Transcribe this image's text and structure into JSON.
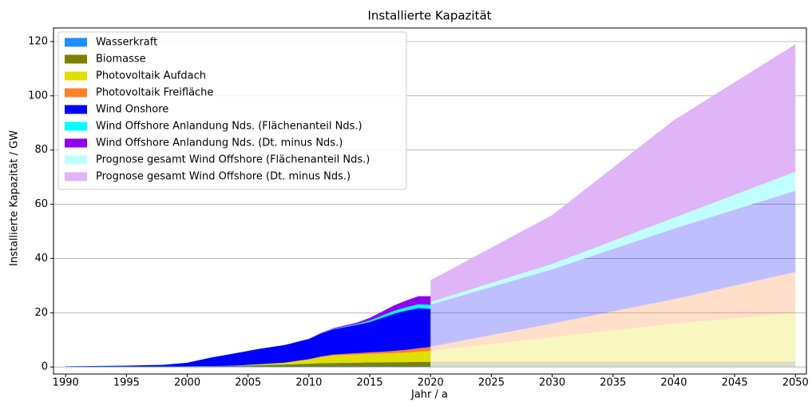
{
  "chart_data": {
    "type": "stacked_area",
    "title": "Installierte Kapazität",
    "x_label": "Jahr / a",
    "y_label": "Installierte Kapazität / GW",
    "x": [
      1990,
      1995,
      1998,
      2000,
      2002,
      2004,
      2006,
      2008,
      2010,
      2011,
      2012,
      2014,
      2015,
      2016,
      2017,
      2018,
      2019,
      2020
    ],
    "forecast_x": [
      2020,
      2030,
      2040,
      2050
    ],
    "forecast_opacity": 0.25,
    "series": [
      {
        "name": "Wasserkraft",
        "color": "#1f8fff",
        "values": [
          0.2,
          0.2,
          0.2,
          0.2,
          0.2,
          0.2,
          0.2,
          0.2,
          0.2,
          0.2,
          0.2,
          0.2,
          0.2,
          0.2,
          0.2,
          0.2,
          0.2,
          0.2
        ],
        "forecast": [
          0.3,
          0.3,
          0.3,
          0.3
        ]
      },
      {
        "name": "Biomasse",
        "color": "#808000",
        "values": [
          0,
          0,
          0,
          0.05,
          0.1,
          0.2,
          0.5,
          0.7,
          1,
          1.2,
          1.3,
          1.4,
          1.5,
          1.5,
          1.6,
          1.6,
          1.7,
          1.7
        ],
        "forecast": [
          1.7,
          1.7,
          1.7,
          1.7
        ]
      },
      {
        "name": "Photovoltaik Aufdach",
        "color": "#dfe000",
        "values": [
          0,
          0,
          0,
          0,
          0.02,
          0.1,
          0.3,
          0.6,
          1.5,
          2.2,
          2.7,
          3,
          3.1,
          3.2,
          3.3,
          3.5,
          3.8,
          4
        ],
        "forecast": [
          4,
          9,
          14,
          18
        ]
      },
      {
        "name": "Photovoltaik Freifläche",
        "color": "#ff7f27",
        "values": [
          0,
          0,
          0,
          0,
          0,
          0,
          0.05,
          0.1,
          0.2,
          0.3,
          0.4,
          0.5,
          0.6,
          0.7,
          0.8,
          1,
          1.2,
          1.5
        ],
        "forecast": [
          1.5,
          5,
          9,
          15
        ]
      },
      {
        "name": "Wind Onshore",
        "color": "#0000ff",
        "values": [
          0.05,
          0.3,
          0.6,
          1.3,
          3.2,
          4.6,
          5.7,
          6.5,
          7.4,
          8.5,
          9.3,
          10.5,
          11.2,
          12.5,
          13.8,
          14.5,
          14.8,
          14
        ],
        "forecast": [
          15.5,
          20,
          26,
          30
        ]
      },
      {
        "name": "Wind Offshore Anlandung Nds. (Flächenanteil Nds.)",
        "color": "#00ffff",
        "values": [
          0,
          0,
          0,
          0,
          0,
          0,
          0,
          0,
          0.05,
          0.1,
          0.2,
          0.3,
          0.5,
          0.8,
          1,
          1.2,
          1.4,
          1.5
        ]
      },
      {
        "name": "Wind Offshore Anlandung Nds. (Dt. minus Nds.)",
        "color": "#9000f0",
        "values": [
          0,
          0,
          0,
          0,
          0,
          0,
          0,
          0,
          0.1,
          0.1,
          0.2,
          0.5,
          1,
          1.5,
          2,
          2.5,
          3,
          3.2
        ]
      },
      {
        "name": "Prognose gesamt Wind Offshore (Flächenanteil Nds.)",
        "color": "#bfffff",
        "forecast": [
          1,
          2,
          4,
          7
        ]
      },
      {
        "name": "Prognose gesamt Wind Offshore (Dt. minus Nds.)",
        "color": "#dfb5f7",
        "forecast": [
          8,
          18,
          36,
          47
        ]
      }
    ],
    "xlim": [
      1989,
      2050.9
    ],
    "ylim": [
      -2.6,
      125
    ],
    "xticks": [
      1990,
      1995,
      2000,
      2005,
      2010,
      2015,
      2020,
      2025,
      2030,
      2035,
      2040,
      2045,
      2050
    ],
    "yticks": [
      0,
      20,
      40,
      60,
      80,
      100,
      120
    ],
    "grid": true,
    "legend": "upper left"
  }
}
